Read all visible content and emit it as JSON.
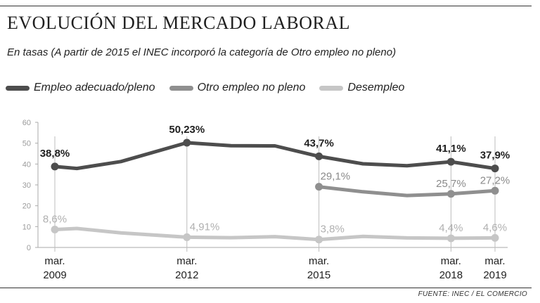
{
  "title": "EVOLUCIÓN DEL MERCADO LABORAL",
  "subtitle": "En tasas (A partir de 2015 el INEC incorporó la categoría de Otro empleo no pleno)",
  "source": "FUENTE: INEC / EL COMERCIO",
  "colors": {
    "empleo": "#4d4d4d",
    "otro": "#8f8f8f",
    "desempleo": "#c6c6c6",
    "axis": "#aaaaaa",
    "label_dark": "#1f1f1f"
  },
  "chart_data": {
    "type": "line",
    "x": [
      2009.0,
      2009.5,
      2010.5,
      2012.0,
      2013.0,
      2014.0,
      2015.0,
      2016.0,
      2017.0,
      2018.0,
      2019.0
    ],
    "x_ticks": [
      {
        "x": 2009,
        "label": [
          "mar.",
          "2009"
        ]
      },
      {
        "x": 2012,
        "label": [
          "mar.",
          "2012"
        ]
      },
      {
        "x": 2015,
        "label": [
          "mar.",
          "2015"
        ]
      },
      {
        "x": 2018,
        "label": [
          "mar.",
          "2018"
        ]
      },
      {
        "x": 2019,
        "label": [
          "mar.",
          "2019"
        ]
      }
    ],
    "ylim": [
      0,
      60
    ],
    "y_ticks": [
      0,
      10,
      20,
      30,
      40,
      50,
      60
    ],
    "series": [
      {
        "name": "Empleo adecuado/pleno",
        "key": "empleo",
        "values": [
          38.8,
          37.9,
          41.2,
          50.23,
          48.8,
          48.7,
          43.7,
          40.1,
          39.2,
          41.1,
          37.9
        ],
        "labels": [
          {
            "x": 2009,
            "value": 38.8,
            "text": "38,8%"
          },
          {
            "x": 2012,
            "value": 50.23,
            "text": "50,23%"
          },
          {
            "x": 2015,
            "value": 43.7,
            "text": "43,7%"
          },
          {
            "x": 2018,
            "value": 41.1,
            "text": "41,1%"
          },
          {
            "x": 2019,
            "value": 37.9,
            "text": "37,9%"
          }
        ]
      },
      {
        "name": "Otro empleo no pleno",
        "key": "otro",
        "values": [
          null,
          null,
          null,
          null,
          null,
          null,
          29.1,
          26.7,
          24.9,
          25.7,
          27.2
        ],
        "labels": [
          {
            "x": 2015,
            "value": 29.1,
            "text": "29,1%"
          },
          {
            "x": 2018,
            "value": 25.7,
            "text": "25,7%"
          },
          {
            "x": 2019,
            "value": 27.2,
            "text": "27,2%"
          }
        ]
      },
      {
        "name": "Desempleo",
        "key": "desempleo",
        "values": [
          8.6,
          9.1,
          7.0,
          4.91,
          4.7,
          5.2,
          3.8,
          5.3,
          4.6,
          4.4,
          4.6
        ],
        "labels": [
          {
            "x": 2009,
            "value": 8.6,
            "text": "8,6%"
          },
          {
            "x": 2012,
            "value": 4.91,
            "text": "4,91%"
          },
          {
            "x": 2015,
            "value": 3.8,
            "text": "3,8%"
          },
          {
            "x": 2018,
            "value": 4.4,
            "text": "4,4%"
          },
          {
            "x": 2019,
            "value": 4.6,
            "text": "4,6%"
          }
        ]
      }
    ]
  }
}
